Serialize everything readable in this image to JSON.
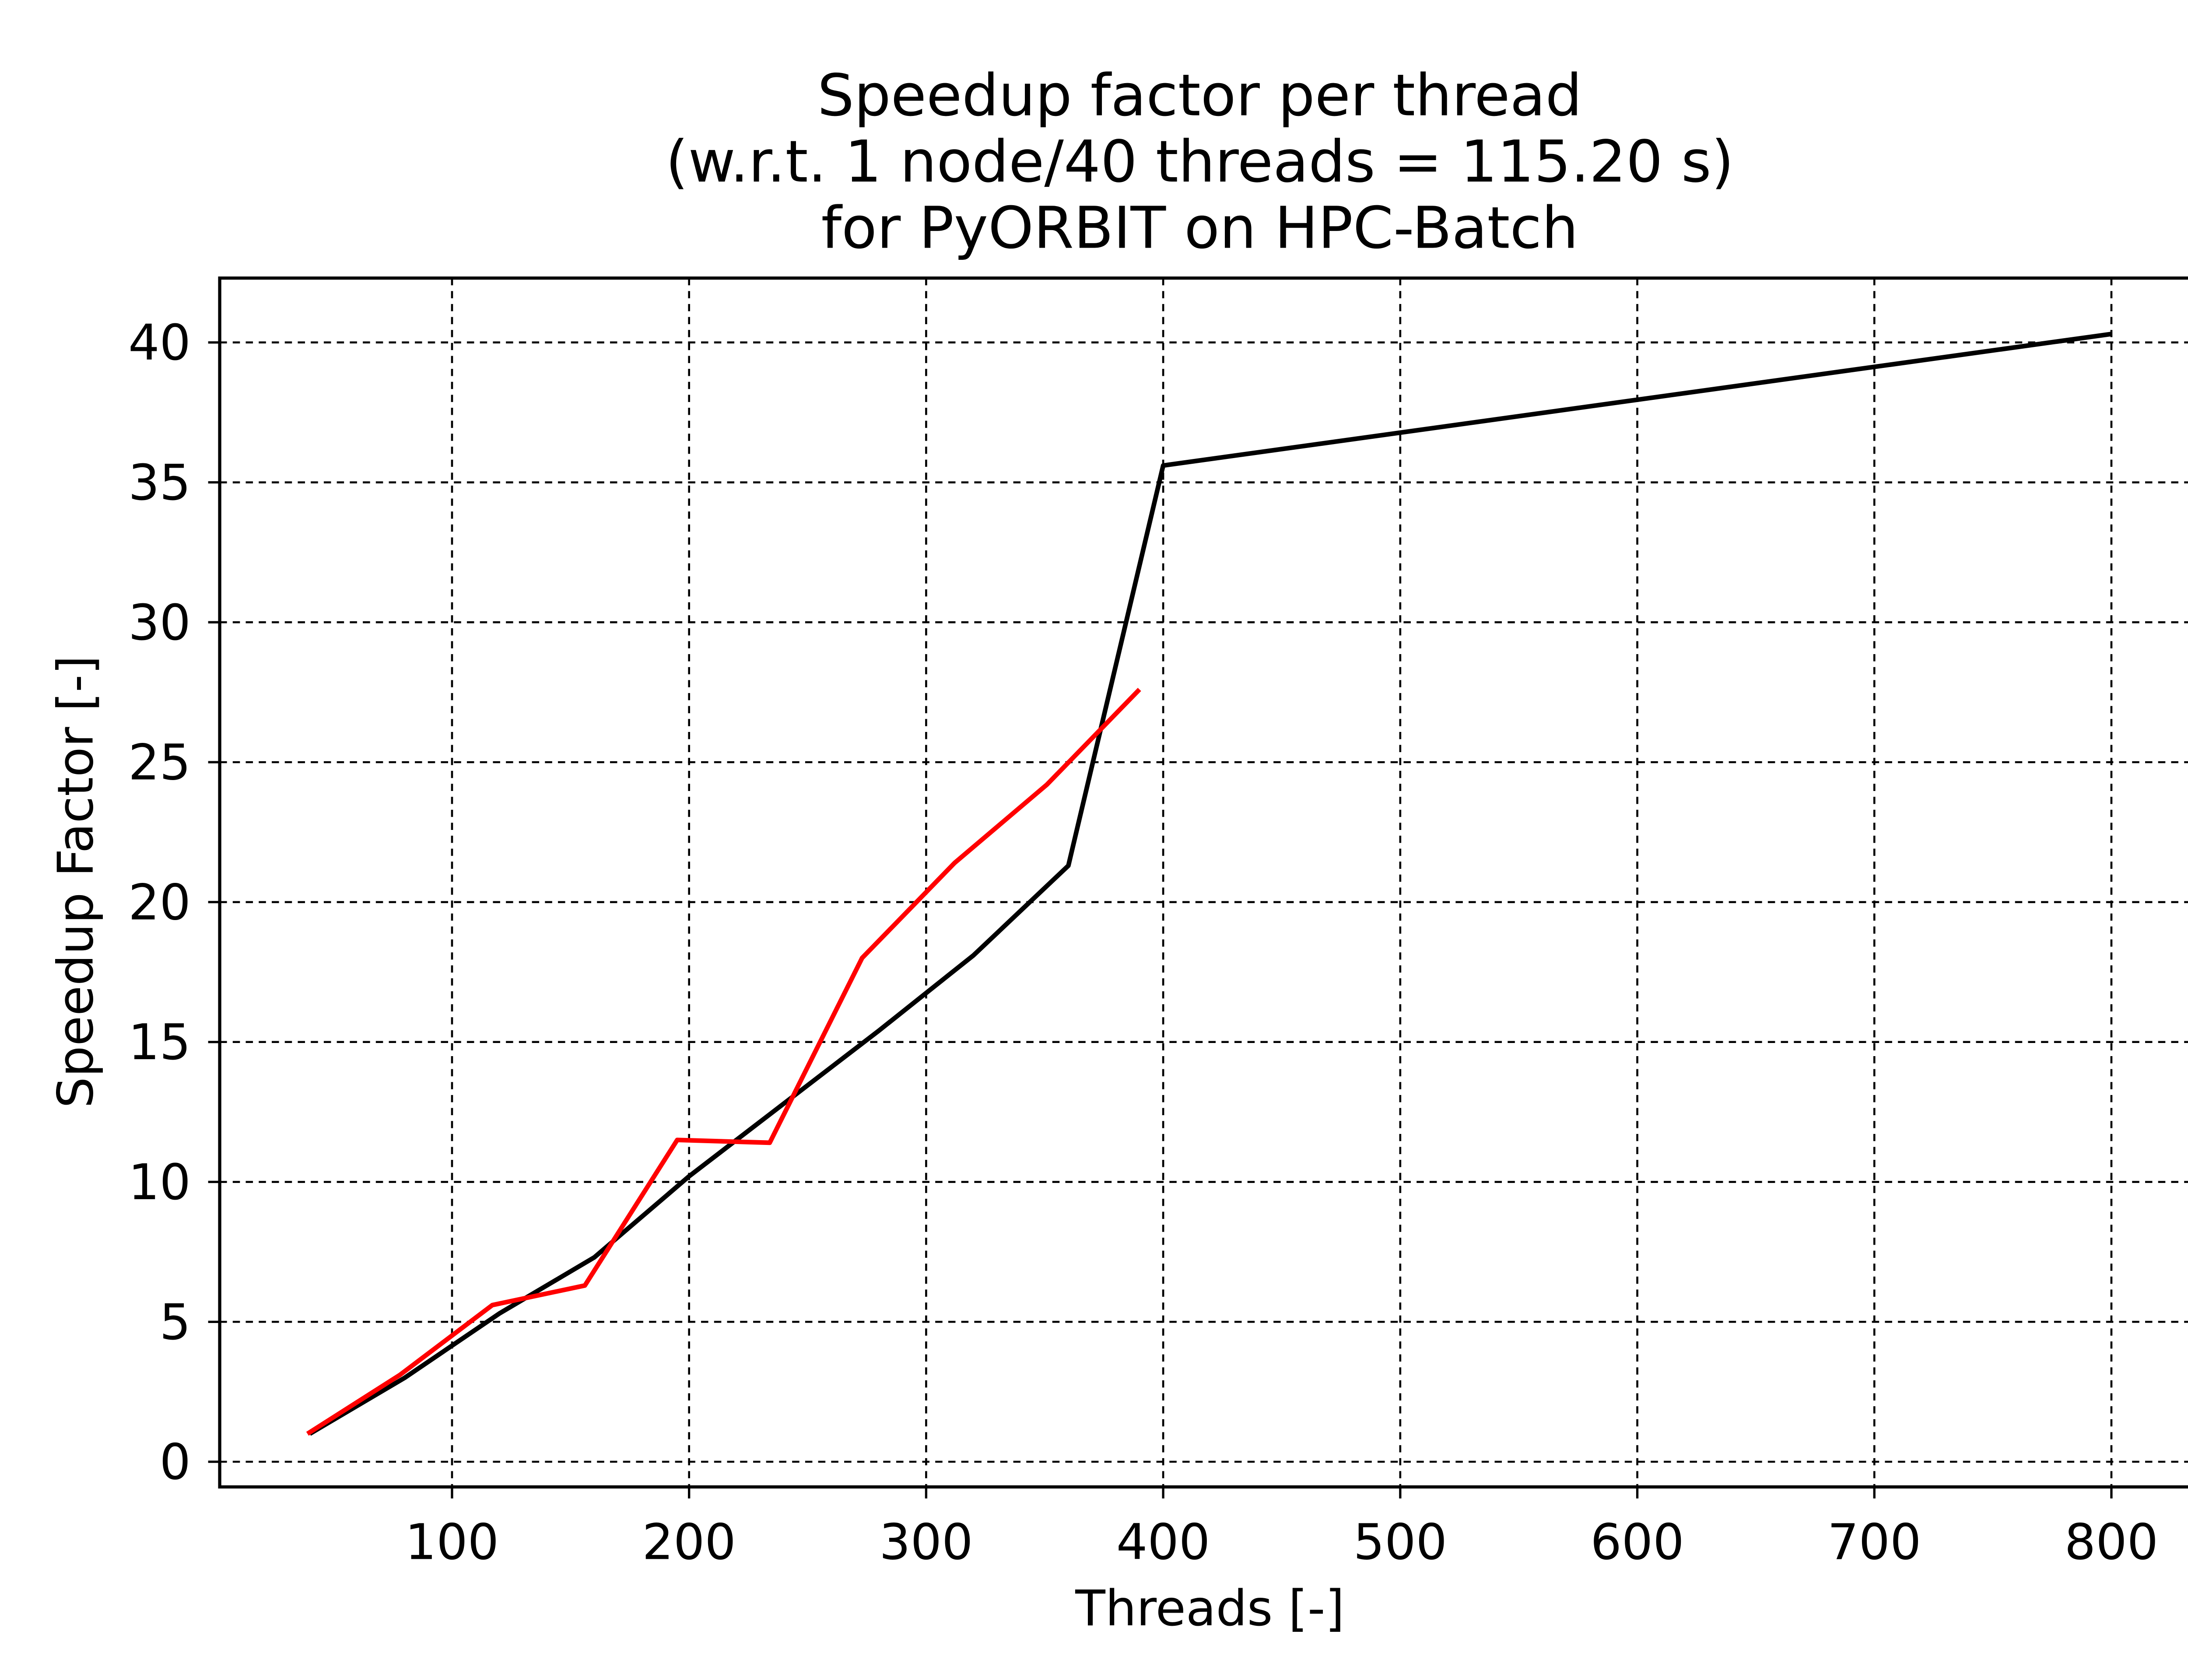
{
  "chart_data": {
    "type": "line",
    "title_lines": [
      "Speedup factor per thread",
      "(w.r.t. 1 node/40 threads = 115.20 s)",
      "for PyORBIT on HPC-Batch"
    ],
    "xlabel": "Threads [-]",
    "ylabel": "Speedup Factor [-]",
    "xlim": [
      2,
      838
    ],
    "ylim": [
      -0.9,
      42.3
    ],
    "x_ticks": [
      100,
      200,
      300,
      400,
      500,
      600,
      700,
      800
    ],
    "x_tick_labels": [
      "100",
      "200",
      "300",
      "400",
      "500",
      "600",
      "700",
      "800"
    ],
    "y_ticks": [
      0,
      5,
      10,
      15,
      20,
      25,
      30,
      35,
      40
    ],
    "y_tick_labels": [
      "0",
      "5",
      "10",
      "15",
      "20",
      "25",
      "30",
      "35",
      "40"
    ],
    "grid": true,
    "series": [
      {
        "color": "#000000",
        "x": [
          40,
          80,
          120,
          160,
          200,
          240,
          280,
          320,
          360,
          400,
          800
        ],
        "y": [
          1.0,
          3.0,
          5.3,
          7.3,
          10.2,
          12.8,
          15.4,
          18.1,
          21.3,
          35.6,
          40.3
        ]
      },
      {
        "color": "#ff0000",
        "x": [
          39,
          78,
          117,
          156,
          195,
          234,
          273,
          312,
          351,
          390
        ],
        "y": [
          1.0,
          3.1,
          5.6,
          6.3,
          11.5,
          11.4,
          18.0,
          21.4,
          24.2,
          27.6
        ]
      }
    ]
  }
}
